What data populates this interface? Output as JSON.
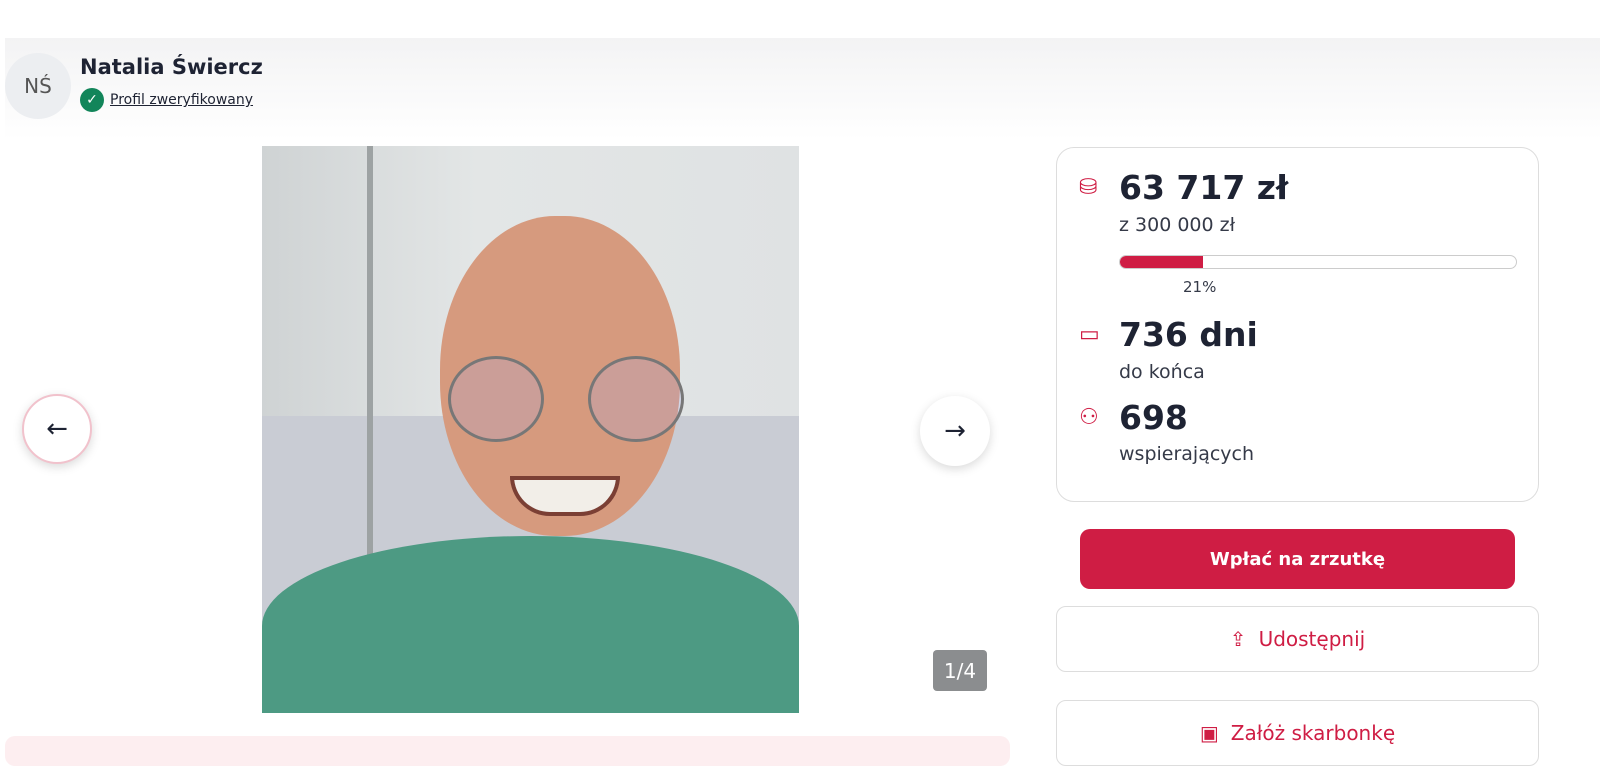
{
  "organizer": {
    "initials": "NŚ",
    "name": "Natalia Świercz",
    "verified_label": "Profil zweryfikowany"
  },
  "gallery": {
    "counter": "1/4",
    "prev_icon": "arrow-left-icon",
    "next_icon": "arrow-right-icon"
  },
  "stats": {
    "raised": "63 717 zł",
    "goal": "z 300 000 zł",
    "progress_percent": 21,
    "progress_label": "21%",
    "days": "736 dni",
    "days_label": "do końca",
    "supporters": "698",
    "supporters_label": "wspierających"
  },
  "actions": {
    "donate": "Wpłać na zrzutkę",
    "share": "Udostępnij",
    "piggybank": "Załóż skarbonkę"
  },
  "colors": {
    "accent": "#cf1d44",
    "verified": "#12855a"
  }
}
